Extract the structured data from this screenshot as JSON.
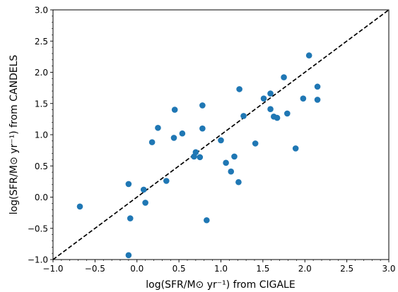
{
  "chart_data": {
    "type": "scatter",
    "xlabel": "log(SFR/M⊙ yr⁻¹) from CIGALE",
    "ylabel": "log(SFR/M⊙ yr⁻¹) from CANDELS",
    "xlim": [
      -1.0,
      3.0
    ],
    "ylim": [
      -1.0,
      3.0
    ],
    "x_ticks": [
      -1.0,
      -0.5,
      0.0,
      0.5,
      1.0,
      1.5,
      2.0,
      2.5,
      3.0
    ],
    "y_ticks": [
      -1.0,
      -0.5,
      0.0,
      0.5,
      1.0,
      1.5,
      2.0,
      2.5,
      3.0
    ],
    "x_tick_labels": [
      "−1.0",
      "−0.5",
      "0.0",
      "0.5",
      "1.0",
      "1.5",
      "2.0",
      "2.5",
      "3.0"
    ],
    "y_tick_labels": [
      "−1.0",
      "−0.5",
      "0.0",
      "0.5",
      "1.0",
      "1.5",
      "2.0",
      "2.5",
      "3.0"
    ],
    "grid": false,
    "marker_color": "#1f77b4",
    "reference_line": {
      "style": "dashed",
      "color": "#000000",
      "from": [
        -1.0,
        -1.0
      ],
      "to": [
        3.0,
        3.0
      ]
    },
    "points": [
      [
        -0.68,
        -0.15
      ],
      [
        -0.1,
        -0.93
      ],
      [
        -0.1,
        0.21
      ],
      [
        -0.08,
        -0.34
      ],
      [
        0.08,
        0.12
      ],
      [
        0.1,
        -0.09
      ],
      [
        0.18,
        0.88
      ],
      [
        0.25,
        1.11
      ],
      [
        0.35,
        0.26
      ],
      [
        0.44,
        0.95
      ],
      [
        0.45,
        1.4
      ],
      [
        0.54,
        1.02
      ],
      [
        0.68,
        0.65
      ],
      [
        0.7,
        0.72
      ],
      [
        0.75,
        0.64
      ],
      [
        0.78,
        1.47
      ],
      [
        0.78,
        1.1
      ],
      [
        0.83,
        -0.37
      ],
      [
        1.0,
        0.91
      ],
      [
        1.06,
        0.55
      ],
      [
        1.12,
        0.41
      ],
      [
        1.16,
        0.65
      ],
      [
        1.21,
        0.24
      ],
      [
        1.22,
        1.73
      ],
      [
        1.27,
        1.3
      ],
      [
        1.41,
        0.86
      ],
      [
        1.51,
        1.58
      ],
      [
        1.59,
        1.66
      ],
      [
        1.59,
        1.41
      ],
      [
        1.63,
        1.29
      ],
      [
        1.67,
        1.27
      ],
      [
        1.75,
        1.92
      ],
      [
        1.79,
        1.34
      ],
      [
        1.89,
        0.78
      ],
      [
        1.98,
        1.58
      ],
      [
        2.05,
        2.27
      ],
      [
        2.15,
        1.77
      ],
      [
        2.15,
        1.56
      ]
    ]
  }
}
